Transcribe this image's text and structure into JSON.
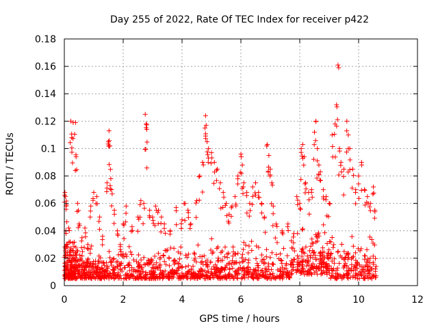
{
  "chart_data": {
    "type": "scatter",
    "title": "Day 255 of 2022, Rate Of TEC Index for receiver p422",
    "xlabel": "GPS time / hours",
    "ylabel": "ROTI / TECUs",
    "xlim": [
      0,
      12
    ],
    "ylim": [
      0,
      0.18
    ],
    "xticks": [
      "0",
      "2",
      "4",
      "6",
      "8",
      "10",
      "12"
    ],
    "yticks": [
      "0",
      "0.02",
      "0.04",
      "0.06",
      "0.08",
      "0.1",
      "0.12",
      "0.14",
      "0.16",
      "0.18"
    ],
    "xtick_values": [
      0,
      2,
      4,
      6,
      8,
      10,
      12
    ],
    "ytick_values": [
      0,
      0.02,
      0.04,
      0.06,
      0.08,
      0.1,
      0.12,
      0.14,
      0.16,
      0.18
    ],
    "grid": true,
    "marker": "+",
    "series": [
      {
        "name": "ROTI",
        "color": "#ff0000",
        "points": [
          [
            0.02,
            0.068
          ],
          [
            0.04,
            0.065
          ],
          [
            0.06,
            0.058
          ],
          [
            0.05,
            0.04
          ],
          [
            0.1,
            0.03
          ],
          [
            0.15,
            0.042
          ],
          [
            0.22,
            0.12
          ],
          [
            0.25,
            0.108
          ],
          [
            0.3,
            0.119
          ],
          [
            0.38,
            0.119
          ],
          [
            0.4,
            0.094
          ],
          [
            0.45,
            0.06
          ],
          [
            0.5,
            0.045
          ],
          [
            0.6,
            0.035
          ],
          [
            0.7,
            0.042
          ],
          [
            0.8,
            0.03
          ],
          [
            0.9,
            0.058
          ],
          [
            1.0,
            0.068
          ],
          [
            1.1,
            0.065
          ],
          [
            1.2,
            0.05
          ],
          [
            1.3,
            0.036
          ],
          [
            1.45,
            0.075
          ],
          [
            1.5,
            0.105
          ],
          [
            1.52,
            0.113
          ],
          [
            1.55,
            0.102
          ],
          [
            1.58,
            0.078
          ],
          [
            1.6,
            0.07
          ],
          [
            1.7,
            0.055
          ],
          [
            1.8,
            0.04
          ],
          [
            1.9,
            0.03
          ],
          [
            2.0,
            0.045
          ],
          [
            2.1,
            0.058
          ],
          [
            2.3,
            0.043
          ],
          [
            2.5,
            0.05
          ],
          [
            2.6,
            0.062
          ],
          [
            2.7,
            0.06
          ],
          [
            2.75,
            0.125
          ],
          [
            2.78,
            0.118
          ],
          [
            2.8,
            0.114
          ],
          [
            2.9,
            0.055
          ],
          [
            3.0,
            0.05
          ],
          [
            3.1,
            0.058
          ],
          [
            3.2,
            0.055
          ],
          [
            3.3,
            0.05
          ],
          [
            3.4,
            0.045
          ],
          [
            3.6,
            0.04
          ],
          [
            3.8,
            0.057
          ],
          [
            4.0,
            0.048
          ],
          [
            4.1,
            0.06
          ],
          [
            4.2,
            0.055
          ],
          [
            4.3,
            0.045
          ],
          [
            4.5,
            0.062
          ],
          [
            4.6,
            0.08
          ],
          [
            4.7,
            0.09
          ],
          [
            4.8,
            0.124
          ],
          [
            4.82,
            0.117
          ],
          [
            4.85,
            0.105
          ],
          [
            4.9,
            0.1
          ],
          [
            5.0,
            0.097
          ],
          [
            5.1,
            0.09
          ],
          [
            5.2,
            0.085
          ],
          [
            5.3,
            0.075
          ],
          [
            5.4,
            0.068
          ],
          [
            5.5,
            0.06
          ],
          [
            5.6,
            0.052
          ],
          [
            5.7,
            0.058
          ],
          [
            5.8,
            0.065
          ],
          [
            5.9,
            0.08
          ],
          [
            6.0,
            0.096
          ],
          [
            6.05,
            0.088
          ],
          [
            6.1,
            0.075
          ],
          [
            6.2,
            0.068
          ],
          [
            6.3,
            0.06
          ],
          [
            6.4,
            0.072
          ],
          [
            6.5,
            0.075
          ],
          [
            6.6,
            0.068
          ],
          [
            6.7,
            0.06
          ],
          [
            6.8,
            0.05
          ],
          [
            6.9,
            0.103
          ],
          [
            6.95,
            0.095
          ],
          [
            7.0,
            0.085
          ],
          [
            7.05,
            0.075
          ],
          [
            7.1,
            0.058
          ],
          [
            7.2,
            0.045
          ],
          [
            7.4,
            0.04
          ],
          [
            7.6,
            0.045
          ],
          [
            7.8,
            0.038
          ],
          [
            7.9,
            0.065
          ],
          [
            8.0,
            0.06
          ],
          [
            8.05,
            0.1
          ],
          [
            8.1,
            0.103
          ],
          [
            8.15,
            0.094
          ],
          [
            8.2,
            0.075
          ],
          [
            8.3,
            0.068
          ],
          [
            8.4,
            0.07
          ],
          [
            8.5,
            0.112
          ],
          [
            8.55,
            0.12
          ],
          [
            8.6,
            0.1
          ],
          [
            8.65,
            0.088
          ],
          [
            8.7,
            0.083
          ],
          [
            8.8,
            0.07
          ],
          [
            8.9,
            0.065
          ],
          [
            9.0,
            0.06
          ],
          [
            9.1,
            0.11
          ],
          [
            9.2,
            0.118
          ],
          [
            9.25,
            0.132
          ],
          [
            9.3,
            0.161
          ],
          [
            9.35,
            0.1
          ],
          [
            9.4,
            0.09
          ],
          [
            9.5,
            0.085
          ],
          [
            9.6,
            0.12
          ],
          [
            9.65,
            0.11
          ],
          [
            9.7,
            0.1
          ],
          [
            9.8,
            0.085
          ],
          [
            9.9,
            0.07
          ],
          [
            10.0,
            0.08
          ],
          [
            10.1,
            0.09
          ],
          [
            10.2,
            0.07
          ],
          [
            10.3,
            0.065
          ],
          [
            10.4,
            0.06
          ],
          [
            10.5,
            0.072
          ],
          [
            10.55,
            0.055
          ]
        ],
        "dense_band": {
          "x_range": [
            0,
            10.6
          ],
          "segments": [
            {
              "x": [
                0,
                0.5
              ],
              "y": [
                0.005,
                0.035
              ]
            },
            {
              "x": [
                0.5,
                1.5
              ],
              "y": [
                0.005,
                0.03
              ]
            },
            {
              "x": [
                1.5,
                3
              ],
              "y": [
                0.005,
                0.03
              ]
            },
            {
              "x": [
                3,
                4.5
              ],
              "y": [
                0.005,
                0.03
              ]
            },
            {
              "x": [
                4.5,
                6
              ],
              "y": [
                0.005,
                0.035
              ]
            },
            {
              "x": [
                6,
                7.7
              ],
              "y": [
                0.005,
                0.035
              ]
            },
            {
              "x": [
                7.7,
                9
              ],
              "y": [
                0.008,
                0.045
              ]
            },
            {
              "x": [
                9,
                10.6
              ],
              "y": [
                0.005,
                0.04
              ]
            }
          ],
          "count": 1400
        }
      }
    ]
  }
}
